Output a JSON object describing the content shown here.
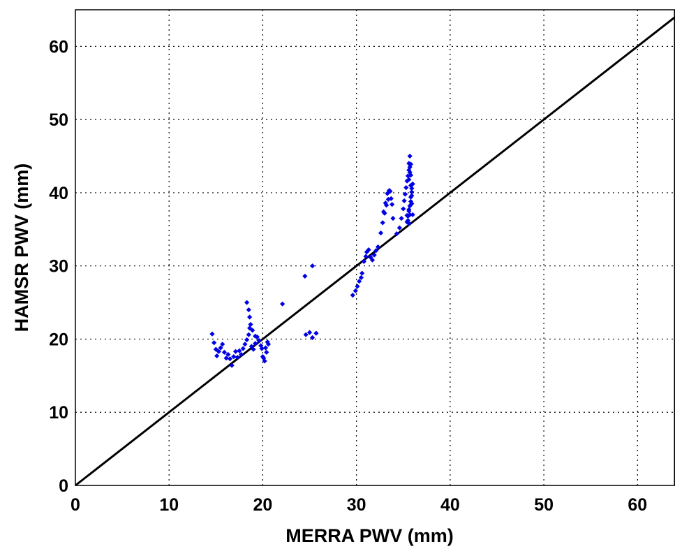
{
  "chart_data": {
    "type": "scatter",
    "xlabel": "MERRA PWV (mm)",
    "ylabel": "HAMSR PWV (mm)",
    "xlim": [
      0,
      64
    ],
    "ylim": [
      0,
      65
    ],
    "xticks": [
      0,
      10,
      20,
      30,
      40,
      50,
      60
    ],
    "yticks": [
      0,
      10,
      20,
      30,
      40,
      50,
      60
    ],
    "grid": true,
    "marker_color": "#0000e6",
    "line_color": "#000000",
    "reference_line": {
      "x": [
        0,
        64
      ],
      "y": [
        0,
        64
      ]
    },
    "series": [
      {
        "marker": "point",
        "x": [
          14.6,
          14.8,
          15.0,
          15.1,
          15.3,
          15.5,
          15.7,
          15.9,
          16.1,
          16.3,
          16.5,
          16.7,
          16.9,
          17.1,
          17.3,
          17.5,
          17.7,
          17.9,
          18.1,
          18.3,
          18.5,
          18.6,
          18.8,
          19.0,
          19.2,
          19.4,
          19.6,
          19.8,
          20.0,
          20.2,
          20.4,
          20.6,
          18.3,
          18.5,
          18.6,
          18.7,
          18.9,
          19.2,
          19.6,
          19.9,
          20.1,
          20.3,
          20.5,
          22.1,
          24.5,
          25.3,
          24.6,
          25.0,
          25.3,
          25.7,
          29.6,
          29.9,
          30.1,
          30.3,
          30.5,
          30.6,
          30.8,
          31.0,
          31.1,
          31.3,
          31.5,
          31.7,
          31.9,
          32.1,
          32.3,
          32.6,
          32.8,
          33.0,
          33.2,
          33.4,
          33.6,
          33.8,
          32.9,
          33.1,
          33.3,
          33.5,
          33.7,
          33.9,
          34.3,
          34.6,
          34.8,
          35.0,
          35.1,
          35.2,
          35.3,
          35.4,
          35.5,
          35.6,
          35.6,
          35.7,
          35.7,
          35.8,
          35.8,
          35.9,
          35.9,
          36.0,
          35.4,
          35.5,
          35.6,
          35.7,
          35.8,
          35.9,
          35.6,
          35.7,
          35.8,
          35.5,
          35.6,
          35.7,
          35.8,
          35.9,
          36.0,
          35.4,
          35.6
        ],
        "y": [
          20.7,
          19.5,
          18.6,
          17.7,
          18.3,
          18.8,
          19.3,
          18.2,
          17.4,
          17.9,
          17.3,
          16.4,
          17.6,
          18.3,
          17.5,
          18.4,
          17.9,
          18.7,
          19.3,
          19.9,
          20.6,
          21.5,
          19.0,
          18.6,
          19.4,
          20.3,
          19.8,
          19.1,
          17.6,
          17.0,
          18.2,
          19.3,
          25.0,
          24.0,
          23.0,
          22.0,
          21.2,
          20.4,
          19.8,
          18.7,
          17.4,
          18.8,
          19.6,
          24.8,
          28.6,
          30.0,
          20.6,
          20.9,
          20.2,
          20.8,
          26.0,
          26.6,
          27.2,
          27.9,
          28.4,
          29.0,
          30.6,
          31.3,
          31.9,
          32.2,
          31.2,
          30.8,
          31.5,
          32.1,
          32.6,
          34.5,
          35.9,
          37.2,
          38.3,
          39.1,
          40.2,
          38.4,
          37.4,
          38.6,
          39.9,
          40.3,
          39.2,
          36.5,
          34.4,
          35.2,
          36.5,
          37.8,
          38.9,
          39.8,
          40.7,
          41.6,
          42.3,
          43.1,
          44.0,
          45.0,
          43.5,
          42.4,
          41.0,
          40.1,
          38.5,
          37.0,
          36.0,
          36.8,
          37.5,
          38.2,
          39.4,
          40.6,
          41.8,
          42.8,
          43.9,
          36.2,
          35.8,
          37.0,
          38.8,
          39.6,
          41.2,
          36.9,
          37.7
        ]
      }
    ]
  }
}
